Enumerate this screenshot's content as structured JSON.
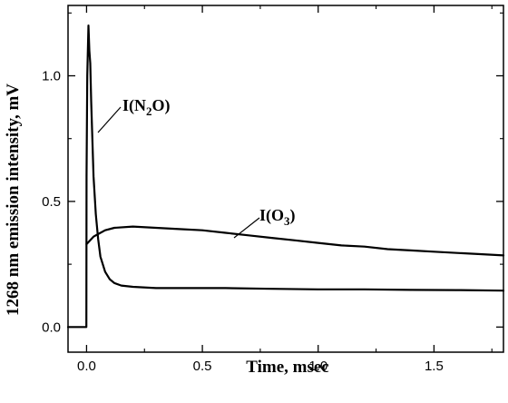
{
  "chart_data": {
    "type": "line",
    "title": "",
    "xlabel": "Time, msec",
    "ylabel": "1268 nm emission intensity, mV",
    "xlim": [
      -0.08,
      1.8
    ],
    "ylim": [
      -0.1,
      1.28
    ],
    "x_ticks": [
      0.0,
      0.5,
      1.0,
      1.5
    ],
    "x_tick_labels": [
      "0.0",
      "0.5",
      "1.0",
      "1.5"
    ],
    "y_ticks": [
      0.0,
      0.5,
      1.0
    ],
    "y_tick_labels": [
      "0.0",
      "0.5",
      "1.0"
    ],
    "grid": false,
    "legend": "none",
    "line_color": "#000000",
    "series": [
      {
        "name": "I(N2O)",
        "x": [
          -0.08,
          -0.03,
          -0.01,
          -0.001,
          0.0,
          0.003,
          0.008,
          0.012,
          0.016,
          0.02,
          0.025,
          0.03,
          0.04,
          0.05,
          0.06,
          0.08,
          0.1,
          0.12,
          0.15,
          0.2,
          0.3,
          0.4,
          0.6,
          0.8,
          1.0,
          1.2,
          1.4,
          1.6,
          1.8
        ],
        "y": [
          0.0,
          0.0,
          0.0,
          0.0,
          0.6,
          1.0,
          1.2,
          1.1,
          1.05,
          0.9,
          0.75,
          0.6,
          0.45,
          0.35,
          0.28,
          0.22,
          0.19,
          0.175,
          0.165,
          0.16,
          0.155,
          0.155,
          0.155,
          0.152,
          0.15,
          0.15,
          0.148,
          0.147,
          0.145
        ]
      },
      {
        "name": "I(O3)",
        "x": [
          0.0,
          0.01,
          0.03,
          0.05,
          0.08,
          0.12,
          0.2,
          0.3,
          0.4,
          0.5,
          0.6,
          0.7,
          0.8,
          0.9,
          1.0,
          1.1,
          1.2,
          1.3,
          1.4,
          1.5,
          1.6,
          1.7,
          1.8
        ],
        "y": [
          0.33,
          0.34,
          0.36,
          0.37,
          0.385,
          0.395,
          0.4,
          0.395,
          0.39,
          0.385,
          0.375,
          0.365,
          0.355,
          0.345,
          0.335,
          0.325,
          0.32,
          0.31,
          0.305,
          0.3,
          0.295,
          0.29,
          0.285
        ]
      }
    ],
    "annotations": [
      {
        "text": "I(N2O)",
        "x": 0.2,
        "y": 1.0,
        "points_to": [
          0.02,
          0.85
        ]
      },
      {
        "text": "I(O3)",
        "x": 0.73,
        "y": 0.5,
        "points_to": [
          0.63,
          0.395
        ]
      }
    ]
  }
}
